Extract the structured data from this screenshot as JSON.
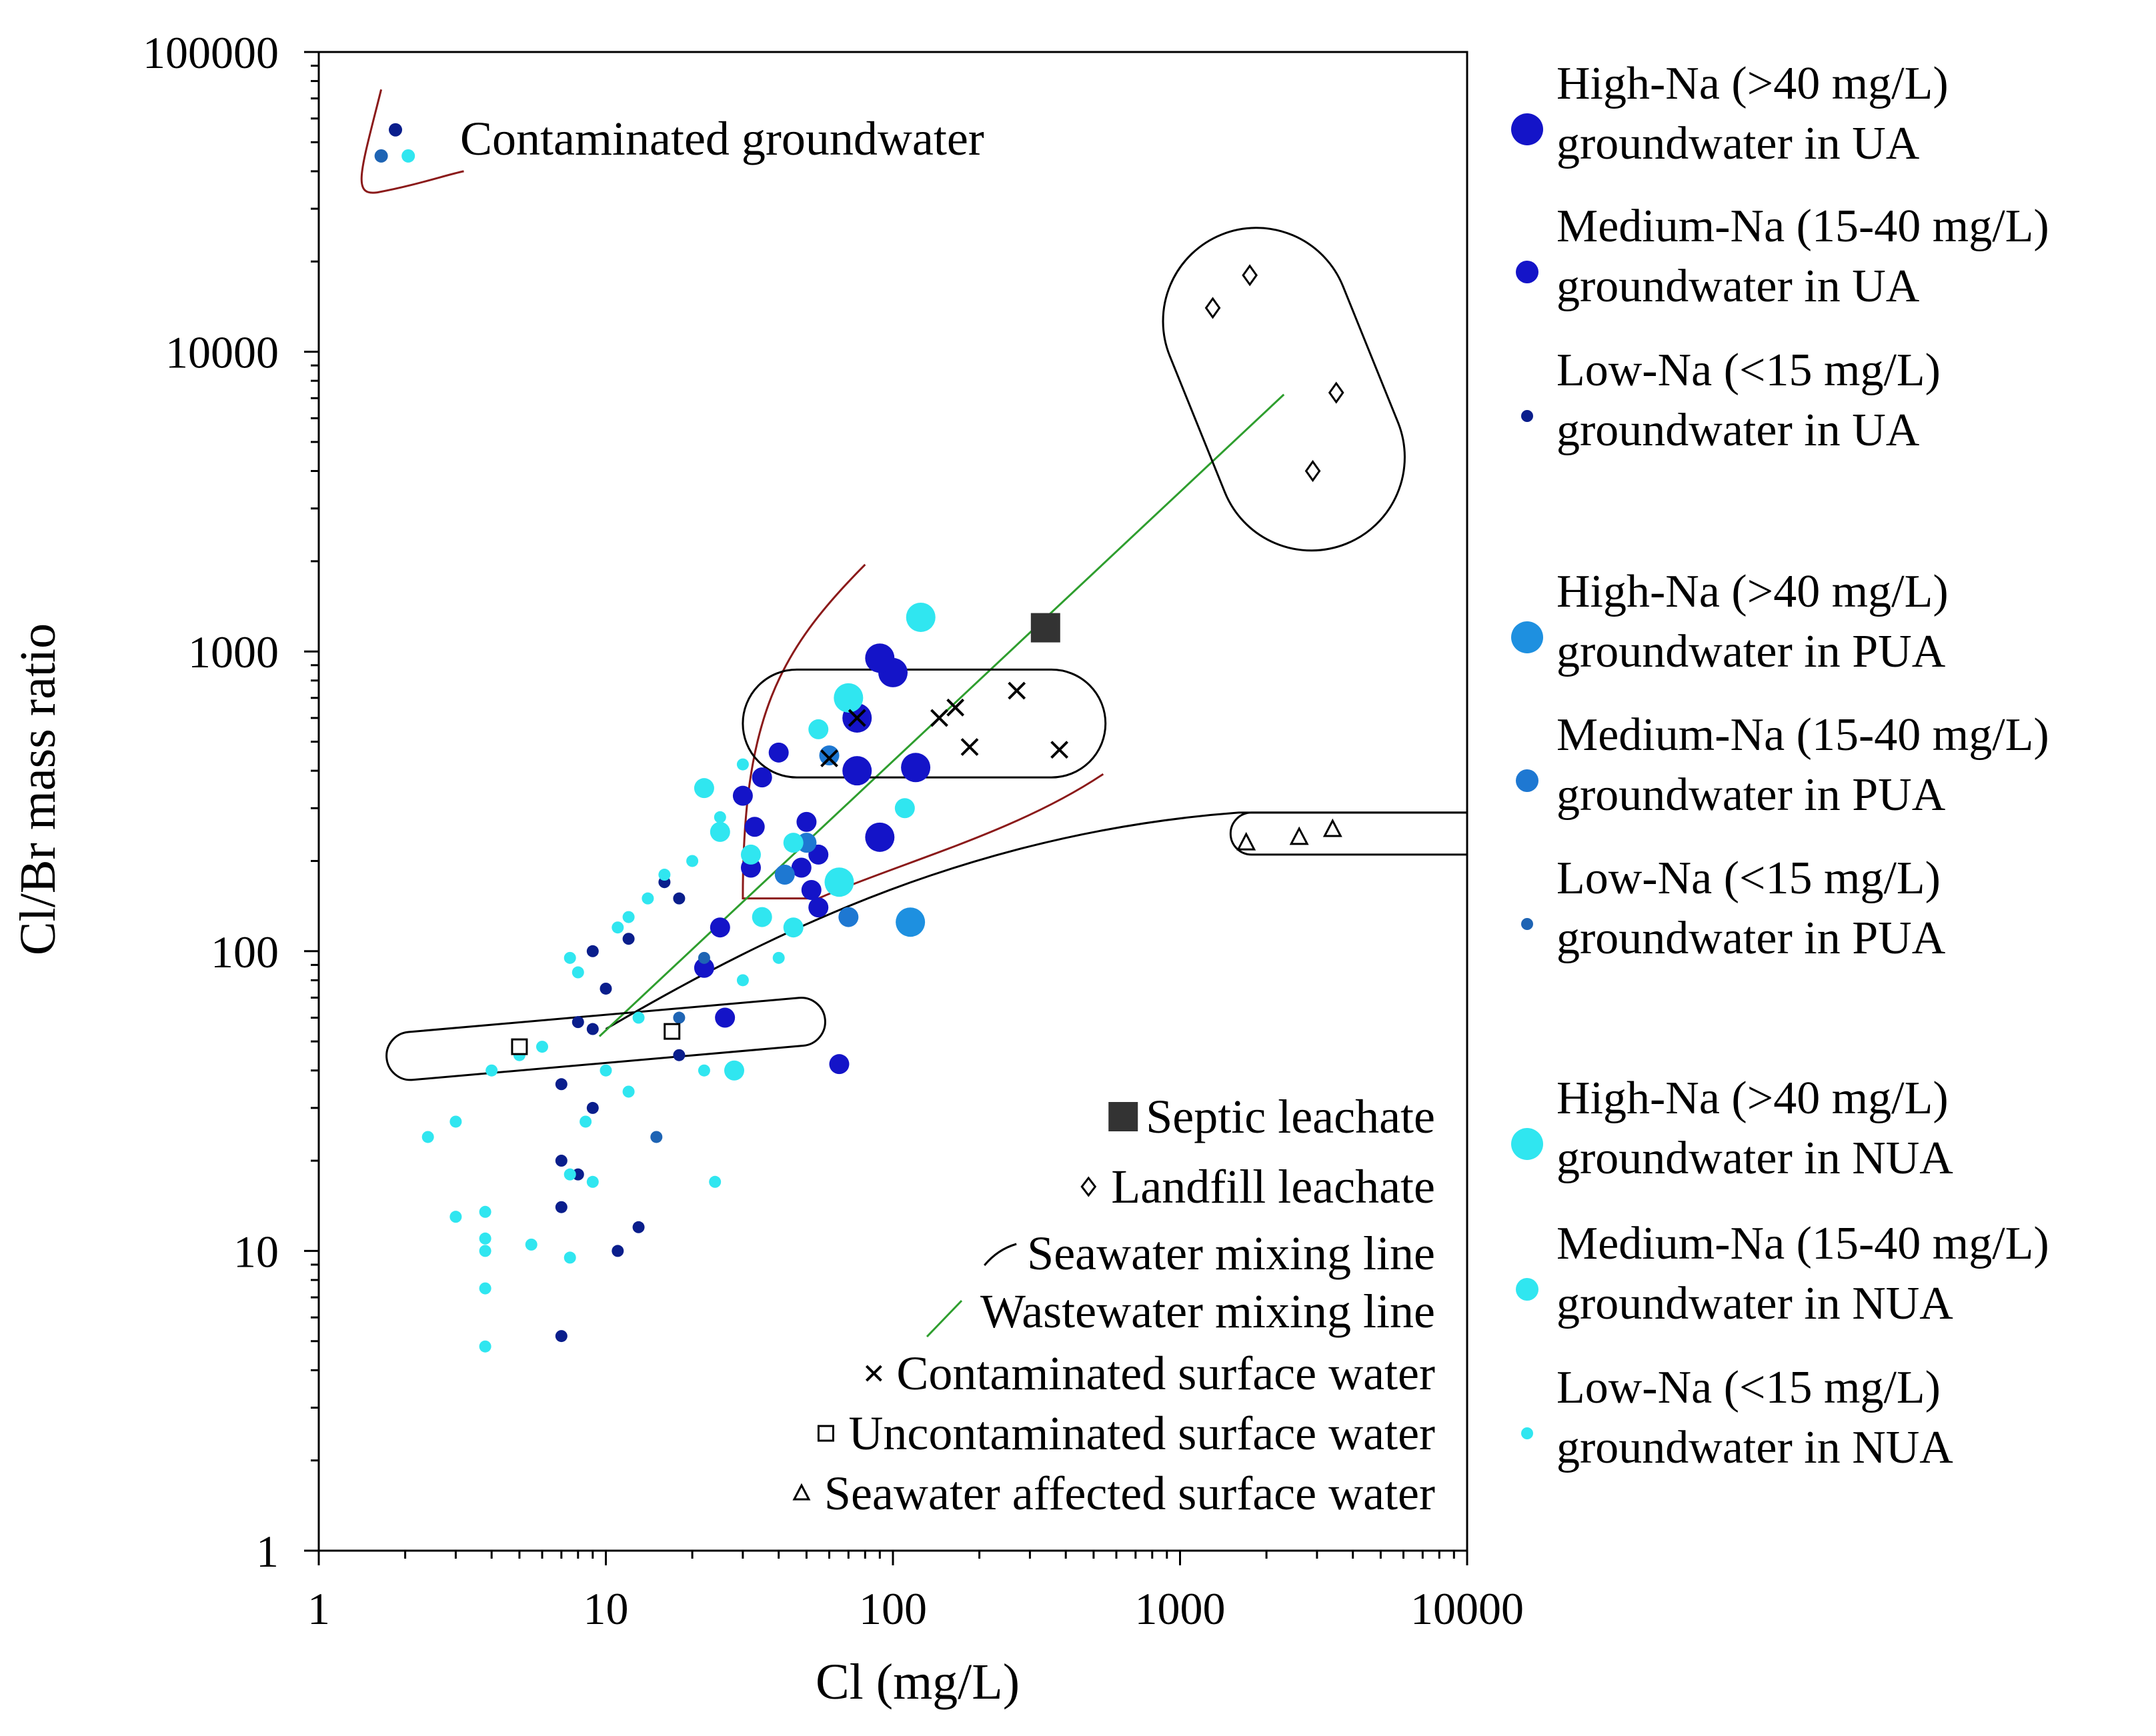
{
  "chart_data": {
    "type": "scatter",
    "xlabel": "Cl (mg/L)",
    "ylabel": "Cl/Br mass ratio",
    "xscale": "log",
    "yscale": "log",
    "xlim": [
      1,
      10000
    ],
    "ylim": [
      1,
      100000
    ],
    "x_ticks": [
      "1",
      "10",
      "100",
      "1000",
      "10000"
    ],
    "y_ticks": [
      "1",
      "10",
      "100",
      "1000",
      "10000",
      "100000"
    ],
    "annotation": "Contaminated groundwater",
    "legend_right": [
      {
        "line1": "High-Na (>40 mg/L)",
        "line2": "groundwater in UA",
        "color": "#1414c8",
        "size": "large"
      },
      {
        "line1": "Medium-Na (15-40 mg/L)",
        "line2": "groundwater in UA",
        "color": "#1414c8",
        "size": "medium"
      },
      {
        "line1": "Low-Na (<15 mg/L)",
        "line2": "groundwater in UA",
        "color": "#0a1e8c",
        "size": "small"
      },
      {
        "line1": "High-Na (>40 mg/L)",
        "line2": "groundwater in PUA",
        "color": "#1e90e0",
        "size": "large"
      },
      {
        "line1": "Medium-Na (15-40 mg/L)",
        "line2": "groundwater in PUA",
        "color": "#1e78d2",
        "size": "medium"
      },
      {
        "line1": "Low-Na (<15 mg/L)",
        "line2": "groundwater in PUA",
        "color": "#1e64b4",
        "size": "small"
      },
      {
        "line1": "High-Na (>40 mg/L)",
        "line2": "groundwater in NUA",
        "color": "#30e6f0",
        "size": "large"
      },
      {
        "line1": "Medium-Na (15-40 mg/L)",
        "line2": "groundwater in NUA",
        "color": "#30e6f0",
        "size": "medium"
      },
      {
        "line1": "Low-Na (<15 mg/L)",
        "line2": "groundwater in NUA",
        "color": "#30e6f0",
        "size": "small"
      }
    ],
    "legend_inner": [
      {
        "label": "Septic leachate",
        "marker": "filled-square"
      },
      {
        "label": "Landfill leachate",
        "marker": "diamond"
      },
      {
        "label": "Seawater mixing line",
        "marker": "curve"
      },
      {
        "label": "Wastewater mixing line",
        "marker": "line"
      },
      {
        "label": "Contaminated surface water",
        "marker": "x"
      },
      {
        "label": "Uncontaminated surface water",
        "marker": "square"
      },
      {
        "label": "Seawater affected surface water",
        "marker": "triangle"
      }
    ],
    "series": [
      {
        "name": "High-Na UA",
        "color": "#1414c8",
        "size": "large",
        "points": [
          [
            100,
            850
          ],
          [
            90,
            950
          ],
          [
            75,
            400
          ],
          [
            120,
            410
          ],
          [
            90,
            240
          ],
          [
            75,
            600
          ]
        ]
      },
      {
        "name": "Medium-Na UA",
        "color": "#1414c8",
        "size": "medium",
        "points": [
          [
            30,
            330
          ],
          [
            35,
            380
          ],
          [
            40,
            460
          ],
          [
            50,
            270
          ],
          [
            55,
            210
          ],
          [
            52,
            160
          ],
          [
            48,
            190
          ],
          [
            32,
            190
          ],
          [
            25,
            120
          ],
          [
            22,
            88
          ],
          [
            26,
            60
          ],
          [
            65,
            42
          ],
          [
            33,
            260
          ],
          [
            55,
            140
          ]
        ]
      },
      {
        "name": "Low-Na UA",
        "color": "#0a1e8c",
        "size": "small",
        "points": [
          [
            9,
            100
          ],
          [
            10,
            75
          ],
          [
            8,
            58
          ],
          [
            9,
            55
          ],
          [
            7,
            36
          ],
          [
            8,
            18
          ],
          [
            7,
            14
          ],
          [
            7,
            5.2
          ],
          [
            11,
            10
          ],
          [
            13,
            12
          ],
          [
            18,
            45
          ],
          [
            18,
            150
          ],
          [
            16,
            170
          ],
          [
            7,
            20
          ],
          [
            9,
            30
          ],
          [
            12,
            110
          ]
        ]
      },
      {
        "name": "High-Na PUA",
        "color": "#1e90e0",
        "size": "large",
        "points": [
          [
            115,
            125
          ]
        ]
      },
      {
        "name": "Medium-Na PUA",
        "color": "#1e78d2",
        "size": "medium",
        "points": [
          [
            60,
            450
          ],
          [
            50,
            230
          ],
          [
            42,
            180
          ],
          [
            70,
            130
          ]
        ]
      },
      {
        "name": "Low-Na PUA",
        "color": "#1e64b4",
        "size": "small",
        "points": [
          [
            15,
            24
          ],
          [
            22,
            95
          ],
          [
            18,
            60
          ]
        ]
      },
      {
        "name": "High-Na NUA",
        "color": "#30e6f0",
        "size": "large",
        "points": [
          [
            125,
            1300
          ],
          [
            70,
            700
          ],
          [
            65,
            170
          ]
        ]
      },
      {
        "name": "Medium-Na NUA",
        "color": "#30e6f0",
        "size": "medium",
        "points": [
          [
            22,
            350
          ],
          [
            25,
            250
          ],
          [
            45,
            230
          ],
          [
            32,
            210
          ],
          [
            55,
            550
          ],
          [
            28,
            40
          ],
          [
            45,
            120
          ],
          [
            35,
            130
          ],
          [
            110,
            300
          ]
        ]
      },
      {
        "name": "Low-Na NUA",
        "color": "#30e6f0",
        "size": "small",
        "points": [
          [
            2.4,
            24
          ],
          [
            3,
            27
          ],
          [
            3,
            13
          ],
          [
            3.8,
            13.5
          ],
          [
            3.8,
            11
          ],
          [
            3.8,
            10
          ],
          [
            3.8,
            7.5
          ],
          [
            3.8,
            4.8
          ],
          [
            5.5,
            10.5
          ],
          [
            7.5,
            9.5
          ],
          [
            7.5,
            18
          ],
          [
            9,
            17
          ],
          [
            8.5,
            27
          ],
          [
            12,
            34
          ],
          [
            13,
            60
          ],
          [
            10,
            40
          ],
          [
            7.5,
            95
          ],
          [
            8,
            85
          ],
          [
            11,
            120
          ],
          [
            12,
            130
          ],
          [
            14,
            150
          ],
          [
            16,
            180
          ],
          [
            20,
            200
          ],
          [
            25,
            280
          ],
          [
            30,
            420
          ],
          [
            30,
            80
          ],
          [
            40,
            95
          ],
          [
            24,
            17
          ],
          [
            22,
            40
          ],
          [
            5,
            45
          ],
          [
            6,
            48
          ],
          [
            4,
            40
          ]
        ]
      }
    ],
    "septic_leachate": [
      [
        340,
        1200
      ]
    ],
    "landfill_leachate": [
      [
        1300,
        14000
      ],
      [
        1750,
        18000
      ],
      [
        3500,
        7300
      ],
      [
        2900,
        4000
      ]
    ],
    "contaminated_surface_water": [
      [
        60,
        440
      ],
      [
        75,
        600
      ],
      [
        145,
        600
      ],
      [
        165,
        650
      ],
      [
        185,
        480
      ],
      [
        270,
        740
      ],
      [
        380,
        470
      ]
    ],
    "uncontaminated_surface_water": [
      [
        5,
        48
      ],
      [
        17,
        54
      ]
    ],
    "seawater_affected_surface_water": [
      [
        1700,
        230
      ],
      [
        2600,
        240
      ],
      [
        3400,
        255
      ]
    ]
  }
}
